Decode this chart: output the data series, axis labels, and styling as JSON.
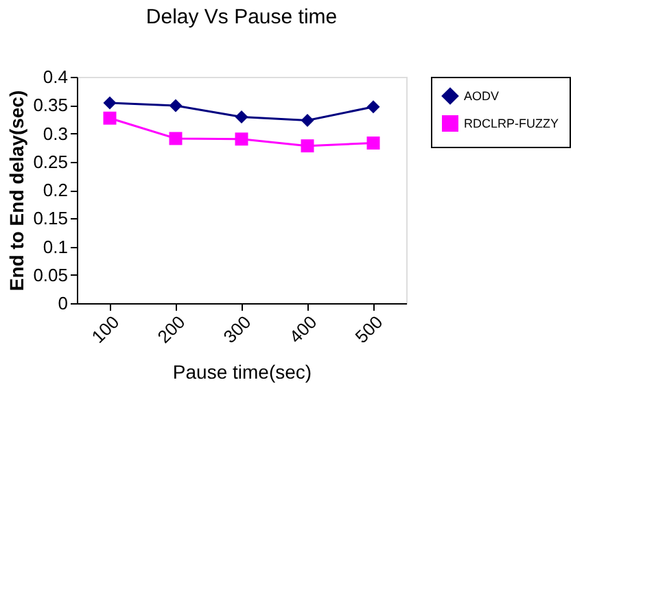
{
  "chart_data": {
    "type": "line",
    "title": "Delay Vs Pause time",
    "xlabel": "Pause time(sec)",
    "ylabel": "End to End delay(sec)",
    "categories": [
      "100",
      "200",
      "300",
      "400",
      "500"
    ],
    "series": [
      {
        "name": "AODV",
        "color": "#000080",
        "marker": "diamond",
        "values": [
          0.354,
          0.349,
          0.329,
          0.323,
          0.347
        ]
      },
      {
        "name": "RDCLRP-FUZZY",
        "color": "#ff00ff",
        "marker": "square",
        "values": [
          0.327,
          0.291,
          0.29,
          0.278,
          0.283
        ]
      }
    ],
    "ylim": [
      0,
      0.4
    ],
    "yticks": [
      0,
      0.05,
      0.1,
      0.15,
      0.2,
      0.25,
      0.3,
      0.35,
      0.4
    ],
    "grid": false,
    "legend": "right",
    "line_style": "solid"
  }
}
